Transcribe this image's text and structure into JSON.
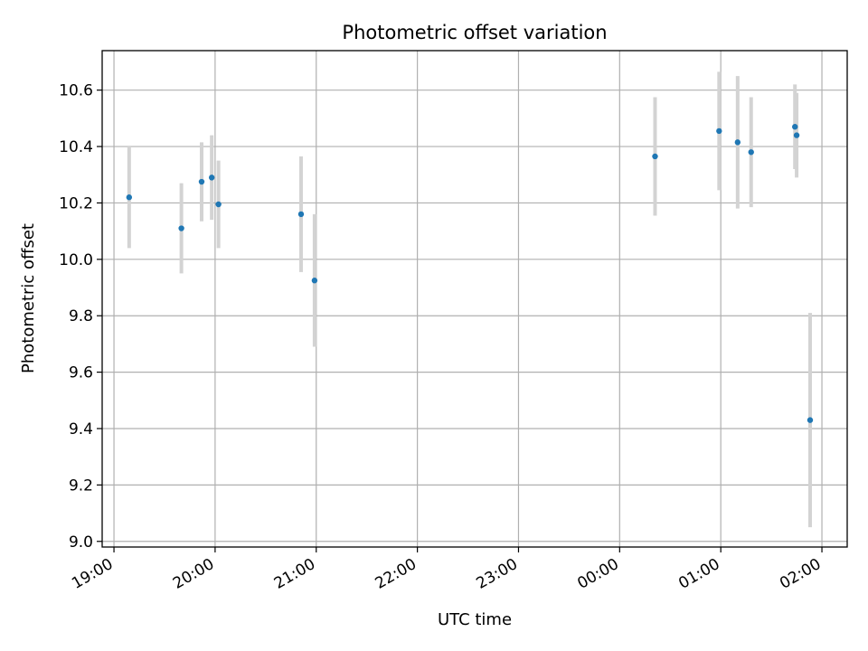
{
  "chart_data": {
    "type": "scatter",
    "title": "Photometric offset variation",
    "xlabel": "UTC time",
    "ylabel": "Photometric offset",
    "grid": true,
    "legend": "none",
    "x_tick_labels": [
      "19:00",
      "20:00",
      "21:00",
      "22:00",
      "23:00",
      "00:00",
      "01:00",
      "02:00"
    ],
    "y_ticks": [
      9.0,
      9.2,
      9.4,
      9.6,
      9.8,
      10.0,
      10.2,
      10.4,
      10.6
    ],
    "y_tick_labels": [
      "9.0",
      "9.2",
      "9.4",
      "9.6",
      "9.8",
      "10.0",
      "10.2",
      "10.4",
      "10.6"
    ],
    "xlim": [
      "18:53",
      "02:15"
    ],
    "ylim": [
      8.98,
      10.74
    ],
    "colors": {
      "point": "#1f77b4",
      "errorbar": "#d3d3d3",
      "grid": "#b0b0b0"
    },
    "points": [
      {
        "x": "19:09",
        "y": 10.22,
        "err": 0.18
      },
      {
        "x": "19:40",
        "y": 10.11,
        "err": 0.16
      },
      {
        "x": "19:52",
        "y": 10.275,
        "err": 0.14
      },
      {
        "x": "19:58",
        "y": 10.29,
        "err": 0.15
      },
      {
        "x": "20:02",
        "y": 10.195,
        "err": 0.155
      },
      {
        "x": "20:51",
        "y": 10.16,
        "err": 0.205
      },
      {
        "x": "20:59",
        "y": 9.925,
        "err": 0.235
      },
      {
        "x": "00:21",
        "y": 10.365,
        "err": 0.21
      },
      {
        "x": "00:59",
        "y": 10.455,
        "err": 0.21
      },
      {
        "x": "01:10",
        "y": 10.415,
        "err": 0.235
      },
      {
        "x": "01:18",
        "y": 10.38,
        "err": 0.195
      },
      {
        "x": "01:44",
        "y": 10.47,
        "err": 0.15
      },
      {
        "x": "01:45",
        "y": 10.44,
        "err": 0.15
      },
      {
        "x": "01:53",
        "y": 9.43,
        "err": 0.38
      }
    ]
  }
}
